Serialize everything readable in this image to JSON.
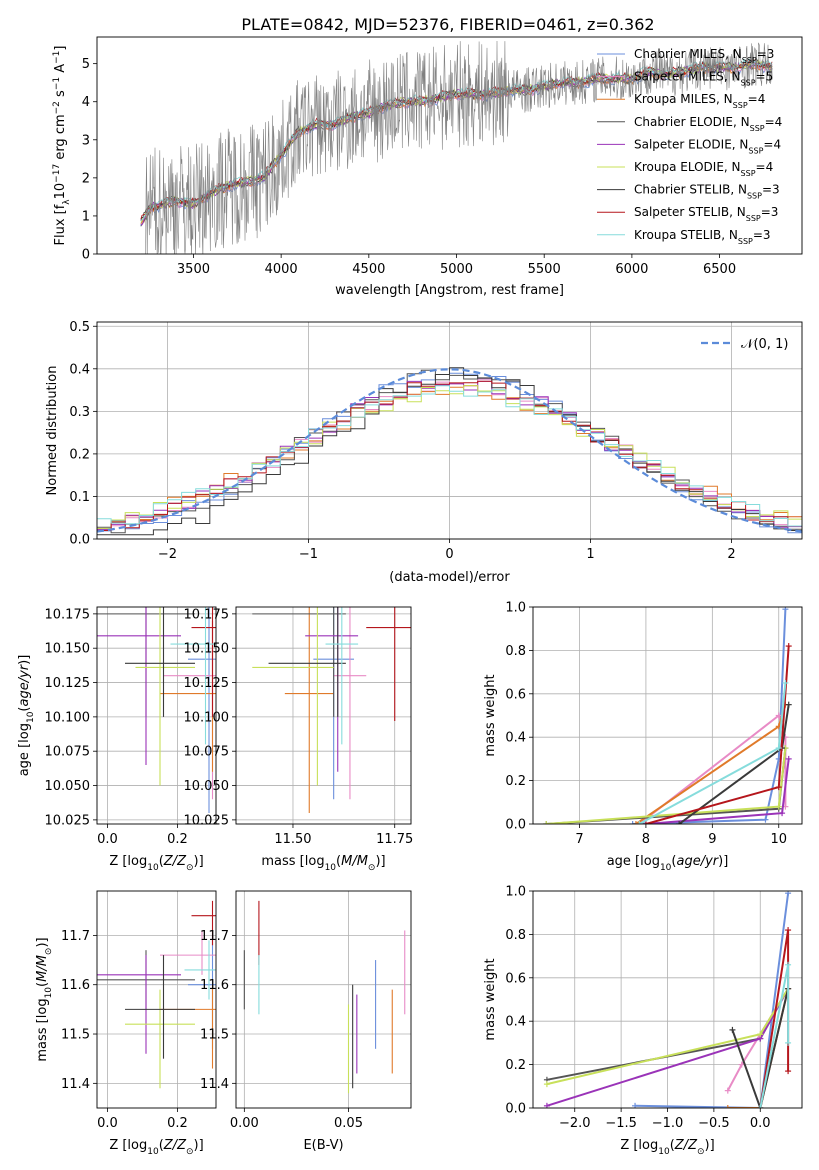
{
  "figure_title": "PLATE=0842, MJD=52376, FIBERID=0461, z=0.362",
  "legend": [
    {
      "name": "Chabrier MILES, N$_{SSP}$=3",
      "main": "Chabrier MILES, N",
      "sub": "SSP",
      "tail": "=3",
      "color": "#6b8fdc"
    },
    {
      "name": "Salpeter MILES, N$_{SSP}$=5",
      "main": "Salpeter MILES, N",
      "sub": "SSP",
      "tail": "=5",
      "color": "#e88bc6"
    },
    {
      "name": "Kroupa MILES, N$_{SSP}$=4",
      "main": "Kroupa MILES, N",
      "sub": "SSP",
      "tail": "=4",
      "color": "#e07a2a"
    },
    {
      "name": "Chabrier ELODIE, N$_{SSP}$=4",
      "main": "Chabrier ELODIE, N",
      "sub": "SSP",
      "tail": "=4",
      "color": "#555555"
    },
    {
      "name": "Salpeter ELODIE, N$_{SSP}$=4",
      "main": "Salpeter ELODIE, N",
      "sub": "SSP",
      "tail": "=4",
      "color": "#9a33b8"
    },
    {
      "name": "Kroupa ELODIE, N$_{SSP}$=4",
      "main": "Kroupa ELODIE, N",
      "sub": "SSP",
      "tail": "=4",
      "color": "#c8e05a"
    },
    {
      "name": "Chabrier STELIB, N$_{SSP}$=3",
      "main": "Chabrier STELIB, N",
      "sub": "SSP",
      "tail": "=3",
      "color": "#3a3a3a"
    },
    {
      "name": "Salpeter STELIB, N$_{SSP}$=3",
      "main": "Salpeter STELIB, N",
      "sub": "SSP",
      "tail": "=3",
      "color": "#b5161c"
    },
    {
      "name": "Kroupa STELIB, N$_{SSP}$=3",
      "main": "Kroupa STELIB, N",
      "sub": "SSP",
      "tail": "=3",
      "color": "#86dcdc"
    }
  ],
  "chart_data": [
    {
      "id": "spectrum",
      "type": "line",
      "xlabel": "wavelength [Angstrom, rest frame]",
      "ylabel": "Flux [f$_\\lambda$10$^{-17}$ erg cm$^{-2}$ s$^{-1}$ A$^{-1}$]",
      "xlim": [
        2950,
        6970
      ],
      "ylim": [
        0,
        5.7
      ],
      "xticks": [
        3500,
        4000,
        4500,
        5000,
        5500,
        6000,
        6500
      ],
      "yticks": [
        0,
        1,
        2,
        3,
        4,
        5
      ],
      "grid": false,
      "legend_position": "right",
      "data_series": {
        "name": "data",
        "color": "#808080",
        "x": [
          3200,
          3250,
          3400,
          3500,
          3600,
          3700,
          3800,
          3900,
          4000,
          4100,
          4200,
          4300,
          4400,
          4500,
          4600,
          4700,
          4800,
          4900,
          5000,
          5100,
          5200,
          5300,
          5400,
          5500,
          5600,
          5700,
          5800,
          5900,
          6000,
          6100,
          6200,
          6300,
          6400,
          6500,
          6600,
          6700,
          6800
        ],
        "y": [
          0.8,
          1.2,
          1.4,
          1.3,
          1.6,
          1.8,
          1.9,
          2.0,
          2.6,
          3.2,
          3.4,
          3.4,
          3.6,
          3.7,
          3.9,
          4.0,
          4.0,
          4.1,
          4.2,
          4.2,
          4.2,
          4.3,
          4.3,
          4.4,
          4.5,
          4.5,
          4.6,
          4.6,
          4.6,
          4.8,
          4.7,
          4.8,
          4.9,
          4.9,
          4.9,
          5.0,
          4.9
        ]
      },
      "model": {
        "x": [
          3200,
          3250,
          3400,
          3500,
          3600,
          3700,
          3800,
          3900,
          4000,
          4100,
          4200,
          4300,
          4400,
          4500,
          4600,
          4700,
          4800,
          4900,
          5000,
          5100,
          5200,
          5300,
          5400,
          5500,
          5600,
          5700,
          5800,
          5900,
          6000,
          6100,
          6200,
          6300,
          6400,
          6500,
          6600,
          6700,
          6800
        ],
        "y": [
          0.8,
          1.2,
          1.4,
          1.3,
          1.6,
          1.8,
          1.9,
          2.0,
          2.6,
          3.2,
          3.4,
          3.4,
          3.6,
          3.7,
          3.9,
          4.0,
          4.0,
          4.1,
          4.2,
          4.2,
          4.2,
          4.3,
          4.3,
          4.4,
          4.5,
          4.5,
          4.6,
          4.6,
          4.6,
          4.8,
          4.7,
          4.8,
          4.9,
          4.9,
          4.9,
          5.0,
          4.9
        ]
      }
    },
    {
      "id": "residuals",
      "type": "line",
      "xlabel": "(data-model)/error",
      "ylabel": "Normed distribution",
      "xlim": [
        -2.5,
        2.5
      ],
      "ylim": [
        0,
        0.51
      ],
      "xticks": [
        -2,
        -1,
        0,
        1,
        2
      ],
      "yticks": [
        0.0,
        0.1,
        0.2,
        0.3,
        0.4,
        0.5
      ],
      "grid": true,
      "legend": "$\\mathcal{N}(0,1)$",
      "legend_position": "top-right",
      "bins": {
        "start": -2.5,
        "width": 0.1,
        "count": 50
      },
      "reference_curve": {
        "name": "N(0,1)",
        "type": "gaussian",
        "mean": 0,
        "sigma": 1,
        "color": "#5b8bd9",
        "style": "dashed"
      }
    },
    {
      "id": "age_vs_Z",
      "type": "scatter",
      "xlabel": "Z [log$_{10}$(Z/Z$_\\odot$)]",
      "ylabel": "age  [log$_{10}$($age/yr$)]",
      "xlim": [
        -0.03,
        0.31
      ],
      "ylim": [
        10.022,
        10.18
      ],
      "xticks": [
        0.0,
        0.2
      ],
      "yticks": [
        10.025,
        10.05,
        10.075,
        10.1,
        10.125,
        10.15,
        10.175
      ],
      "grid": true
    },
    {
      "id": "age_vs_mass",
      "type": "scatter",
      "xlabel": "mass [log$_{10}$($M/M_\\odot$)]",
      "xlim": [
        11.36,
        11.79
      ],
      "ylim": [
        10.022,
        10.18
      ],
      "xticks": [
        11.5,
        11.75
      ],
      "yticks": [
        10.025,
        10.05,
        10.075,
        10.1,
        10.125,
        10.15,
        10.175
      ],
      "grid": true
    },
    {
      "id": "mass_weight_vs_age",
      "type": "line",
      "xlabel": "age  [log$_{10}$($age/yr$)]",
      "ylabel": "mass weight",
      "xlim": [
        6.3,
        10.35
      ],
      "ylim": [
        0,
        1.0
      ],
      "xticks": [
        7,
        8,
        9,
        10
      ],
      "yticks": [
        0.0,
        0.2,
        0.4,
        0.6,
        0.8,
        1.0
      ],
      "grid": true,
      "series": [
        {
          "name": "Chabrier MILES",
          "x": [
            7.8,
            9.8,
            10.0,
            10.1
          ],
          "y": [
            0.0,
            0.02,
            0.3,
            0.99
          ]
        },
        {
          "name": "Salpeter MILES",
          "x": [
            7.9,
            10.0,
            10.1,
            10.1
          ],
          "y": [
            0.0,
            0.5,
            0.4,
            0.08
          ]
        },
        {
          "name": "Kroupa MILES",
          "x": [
            7.85,
            10.0,
            10.1
          ],
          "y": [
            0.0,
            0.45,
            0.55
          ]
        },
        {
          "name": "Chabrier ELODIE",
          "x": [
            6.5,
            10.0,
            10.1
          ],
          "y": [
            0.0,
            0.07,
            0.35
          ]
        },
        {
          "name": "Salpeter ELODIE",
          "x": [
            8.0,
            10.05,
            10.15
          ],
          "y": [
            0.0,
            0.05,
            0.3
          ]
        },
        {
          "name": "Kroupa ELODIE",
          "x": [
            6.5,
            10.0,
            10.1
          ],
          "y": [
            0.0,
            0.08,
            0.35
          ]
        },
        {
          "name": "Chabrier STELIB",
          "x": [
            8.5,
            10.05,
            10.15
          ],
          "y": [
            0.0,
            0.35,
            0.55
          ]
        },
        {
          "name": "Salpeter STELIB",
          "x": [
            8.0,
            10.0,
            10.15
          ],
          "y": [
            0.0,
            0.17,
            0.82
          ]
        },
        {
          "name": "Kroupa STELIB",
          "x": [
            7.9,
            10.0,
            10.1
          ],
          "y": [
            0.0,
            0.35,
            0.65
          ]
        }
      ]
    },
    {
      "id": "mass_vs_Z",
      "type": "scatter",
      "xlabel": "Z [log$_{10}$(Z/Z$_\\odot$)]",
      "ylabel": "mass [log$_{10}$($M/M_\\odot$)]",
      "xlim": [
        -0.03,
        0.31
      ],
      "ylim": [
        11.35,
        11.79
      ],
      "xticks": [
        0.0,
        0.2
      ],
      "yticks": [
        11.4,
        11.5,
        11.6,
        11.7
      ],
      "grid": true
    },
    {
      "id": "mass_vs_EBV",
      "type": "scatter",
      "xlabel": "E(B-V)",
      "xlim": [
        -0.004,
        0.08
      ],
      "ylim": [
        11.35,
        11.79
      ],
      "xticks": [
        0.0,
        0.05
      ],
      "yticks": [
        11.4,
        11.5,
        11.6,
        11.7
      ],
      "grid": true,
      "points": [
        {
          "name": "Chabrier MILES",
          "x": 0.063,
          "y": 11.56,
          "y_lo": 11.47,
          "y_hi": 11.65
        },
        {
          "name": "Salpeter MILES",
          "x": 0.077,
          "y": 11.62,
          "y_lo": 11.54,
          "y_hi": 11.71
        },
        {
          "name": "Kroupa MILES",
          "x": 0.071,
          "y": 11.5,
          "y_lo": 11.42,
          "y_hi": 11.59
        },
        {
          "name": "Chabrier ELODIE",
          "x": 0.0,
          "y": 11.61,
          "y_lo": 11.55,
          "y_hi": 11.67
        },
        {
          "name": "Salpeter ELODIE",
          "x": 0.054,
          "y": 11.5,
          "y_lo": 11.42,
          "y_hi": 11.58
        },
        {
          "name": "Kroupa ELODIE",
          "x": 0.05,
          "y": 11.48,
          "y_lo": 11.38,
          "y_hi": 11.56
        },
        {
          "name": "Chabrier STELIB",
          "x": 0.052,
          "y": 11.5,
          "y_lo": 11.39,
          "y_hi": 11.6
        },
        {
          "name": "Salpeter STELIB",
          "x": 0.007,
          "y": 11.71,
          "y_lo": 11.64,
          "y_hi": 11.77
        },
        {
          "name": "Kroupa STELIB",
          "x": 0.007,
          "y": 11.6,
          "y_lo": 11.54,
          "y_hi": 11.66
        }
      ]
    },
    {
      "id": "mass_weight_vs_Z",
      "type": "line",
      "xlabel": "Z [log$_{10}$(Z/Z$_\\odot$)]",
      "ylabel": "mass weight",
      "xlim": [
        -2.45,
        0.45
      ],
      "ylim": [
        0,
        1.0
      ],
      "xticks": [
        -2.0,
        -1.5,
        -1.0,
        -0.5,
        0.0
      ],
      "yticks": [
        0.0,
        0.2,
        0.4,
        0.6,
        0.8,
        1.0
      ],
      "grid": true,
      "series": [
        {
          "name": "Chabrier MILES",
          "x": [
            -1.35,
            0.0,
            0.3
          ],
          "y": [
            0.01,
            0.0,
            0.99
          ]
        },
        {
          "name": "Salpeter MILES",
          "x": [
            -0.35,
            -0.2,
            0.3
          ],
          "y": [
            0.08,
            0.2,
            0.55
          ]
        },
        {
          "name": "Kroupa MILES",
          "x": [
            -0.35,
            0.0,
            0.3
          ],
          "y": [
            0.0,
            0.0,
            0.55
          ]
        },
        {
          "name": "Chabrier ELODIE",
          "x": [
            -2.3,
            0.0,
            0.3
          ],
          "y": [
            0.13,
            0.32,
            0.55
          ]
        },
        {
          "name": "Salpeter ELODIE",
          "x": [
            -2.3,
            0.0,
            0.3
          ],
          "y": [
            0.01,
            0.32,
            0.55
          ]
        },
        {
          "name": "Kroupa ELODIE",
          "x": [
            -2.3,
            0.0,
            0.3
          ],
          "y": [
            0.11,
            0.34,
            0.55
          ]
        },
        {
          "name": "Chabrier STELIB",
          "x": [
            -0.3,
            0.0,
            0.3
          ],
          "y": [
            0.36,
            0.0,
            0.55
          ]
        },
        {
          "name": "Salpeter STELIB",
          "x": [
            0.0,
            0.3,
            0.3
          ],
          "y": [
            0.0,
            0.82,
            0.17
          ]
        },
        {
          "name": "Kroupa STELIB",
          "x": [
            0.0,
            0.3,
            0.3
          ],
          "y": [
            0.0,
            0.66,
            0.3
          ]
        }
      ]
    }
  ]
}
